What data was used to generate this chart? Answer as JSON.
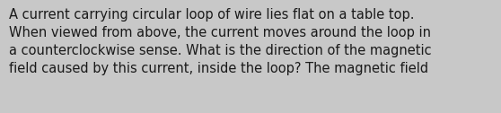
{
  "text": "A current carrying circular loop of wire lies flat on a table top.\nWhen viewed from above, the current moves around the loop in\na counterclockwise sense. What is the direction of the magnetic\nfield caused by this current, inside the loop? The magnetic field",
  "background_color": "#c8c8c8",
  "text_color": "#1a1a1a",
  "font_size": 10.5,
  "fig_width": 5.58,
  "fig_height": 1.26,
  "dpi": 100
}
